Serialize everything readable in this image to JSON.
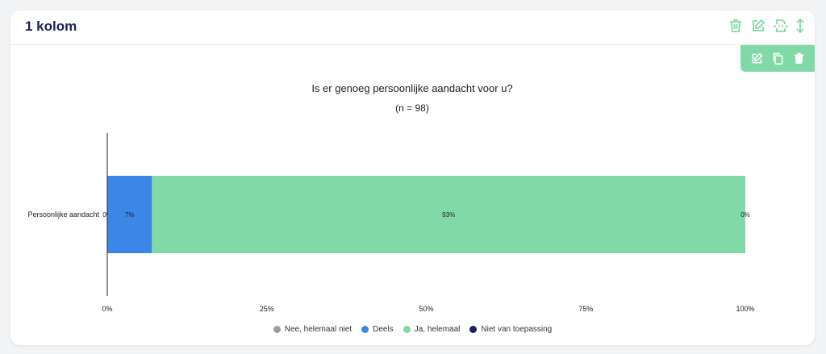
{
  "card": {
    "title": "1 kolom"
  },
  "header_icons": [
    "trash-icon",
    "edit-icon",
    "page-break-icon",
    "resize-vertical-icon"
  ],
  "toolbar_icons": [
    "edit-icon",
    "copy-icon",
    "trash-icon"
  ],
  "colors": {
    "accent": "#82d9a8",
    "title": "#1b1f5c",
    "series": [
      "#9e9e9e",
      "#3b86e6",
      "#82d9a8",
      "#1b1f5c"
    ]
  },
  "chart_data": {
    "type": "bar",
    "orientation": "horizontal",
    "stacked": true,
    "title": "Is er genoeg persoonlijke aandacht voor u?",
    "subtitle": "(n = 98)",
    "categories": [
      "Persoonlijke aandacht"
    ],
    "series": [
      {
        "name": "Nee, helemaal niet",
        "values": [
          0
        ],
        "label": "0%"
      },
      {
        "name": "Deels",
        "values": [
          7
        ],
        "label": "7%"
      },
      {
        "name": "Ja, helemaal",
        "values": [
          93
        ],
        "label": "93%"
      },
      {
        "name": "Niet van toepassing",
        "values": [
          0
        ],
        "label": "0%"
      }
    ],
    "x_ticks": [
      "0%",
      "25%",
      "50%",
      "75%",
      "100%"
    ],
    "xlim": [
      0,
      100
    ],
    "legend": "bottom",
    "grid": false
  }
}
